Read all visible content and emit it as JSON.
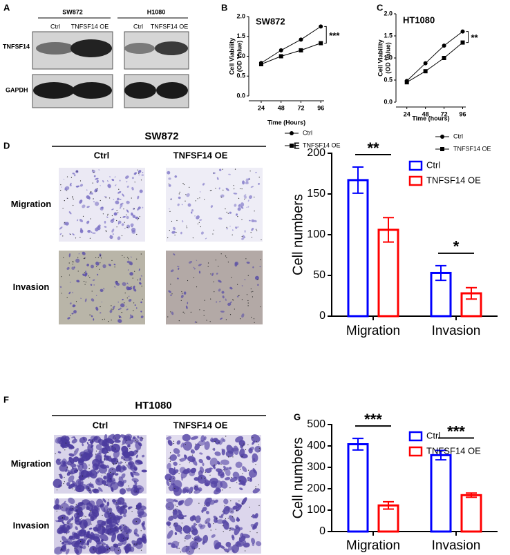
{
  "figure": {
    "blot": {
      "panel": "A",
      "groups": [
        "SW872",
        "H1080"
      ],
      "lanes": [
        "Ctrl",
        "TNFSF14 OE",
        "Ctrl",
        "TNFSF14 OE"
      ],
      "proteins": [
        "TNFSF14",
        "GAPDH"
      ]
    },
    "images": [
      {
        "panel": "D",
        "title": "SW872",
        "columns": [
          "Ctrl",
          "TNFSF14 OE"
        ],
        "rows": [
          "Migration",
          "Invasion"
        ]
      },
      {
        "panel": "F",
        "title": "HT1080",
        "columns": [
          "Ctrl",
          "TNFSF14 OE"
        ],
        "rows": [
          "Migration",
          "Invasion"
        ]
      }
    ]
  },
  "chart_data": [
    {
      "panel": "B",
      "type": "line",
      "title": "SW872",
      "xlabel": "Time (Hours)",
      "ylabel": [
        "Cell Viability",
        "(OD Value)"
      ],
      "x": [
        24,
        48,
        72,
        96
      ],
      "xlim": [
        9,
        100
      ],
      "xticks": [
        24,
        48,
        72,
        96
      ],
      "ylim": [
        0,
        2
      ],
      "yticks": [
        {
          "value": 0,
          "label": "0.0"
        },
        0.5,
        {
          "value": 1,
          "label": "1.0"
        },
        1.5,
        {
          "value": 2,
          "label": "2.0"
        }
      ],
      "series": [
        {
          "name": "Ctrl",
          "color": "#000000",
          "marker": "circle",
          "values": [
            0.83,
            1.15,
            1.42,
            1.75
          ]
        },
        {
          "name": "TNFSF14 OE",
          "color": "#000000",
          "marker": "square",
          "values": [
            0.8,
            1.0,
            1.15,
            1.33
          ]
        }
      ],
      "annotation": "***",
      "legend": "lower right"
    },
    {
      "panel": "C",
      "type": "line",
      "title": "HT1080",
      "xlabel": "Time (hours)",
      "ylabel": [
        "Cell Viability",
        "(OD Value)"
      ],
      "x": [
        24,
        48,
        72,
        96
      ],
      "xlim": [
        10,
        100
      ],
      "xticks": [
        24,
        48,
        72,
        96
      ],
      "ylim": [
        0,
        2
      ],
      "yticks": [
        {
          "value": 0,
          "label": "0.0"
        },
        0.5,
        {
          "value": 1,
          "label": "1.0"
        },
        1.5,
        {
          "value": 2,
          "label": "2.0"
        }
      ],
      "series": [
        {
          "name": "Ctrl",
          "color": "#000000",
          "marker": "circle",
          "values": [
            0.48,
            0.88,
            1.28,
            1.6
          ]
        },
        {
          "name": "TNFSF14 OE",
          "color": "#000000",
          "marker": "square",
          "values": [
            0.45,
            0.7,
            1.0,
            1.35
          ]
        }
      ],
      "annotation": "**",
      "legend": "lower right"
    },
    {
      "panel": "E",
      "type": "bar",
      "ylabel": "Cell numbers",
      "categories": [
        "Migration",
        "Invasion"
      ],
      "ylim": [
        0,
        200
      ],
      "yticks": [
        0,
        50,
        100,
        150,
        200
      ],
      "series": [
        {
          "name": "Ctrl",
          "color": "#0000ff",
          "values": [
            167,
            53
          ],
          "errors": [
            16,
            9
          ]
        },
        {
          "name": "TNFSF14 OE",
          "color": "#ff0000",
          "values": [
            106,
            28
          ],
          "errors": [
            15,
            7
          ]
        }
      ],
      "annotations": [
        "**",
        "*"
      ],
      "legend": "upper right"
    },
    {
      "panel": "G",
      "type": "bar",
      "ylabel": "Cell numbers",
      "categories": [
        "Migration",
        "Invasion"
      ],
      "ylim": [
        0,
        500
      ],
      "yticks": [
        0,
        100,
        200,
        300,
        400,
        500
      ],
      "series": [
        {
          "name": "Ctrl",
          "color": "#0000ff",
          "values": [
            408,
            357
          ],
          "errors": [
            27,
            22
          ]
        },
        {
          "name": "TNFSF14 OE",
          "color": "#ff0000",
          "values": [
            122,
            170
          ],
          "errors": [
            17,
            10
          ]
        }
      ],
      "annotations": [
        "***",
        "***"
      ],
      "legend": "upper right"
    }
  ]
}
